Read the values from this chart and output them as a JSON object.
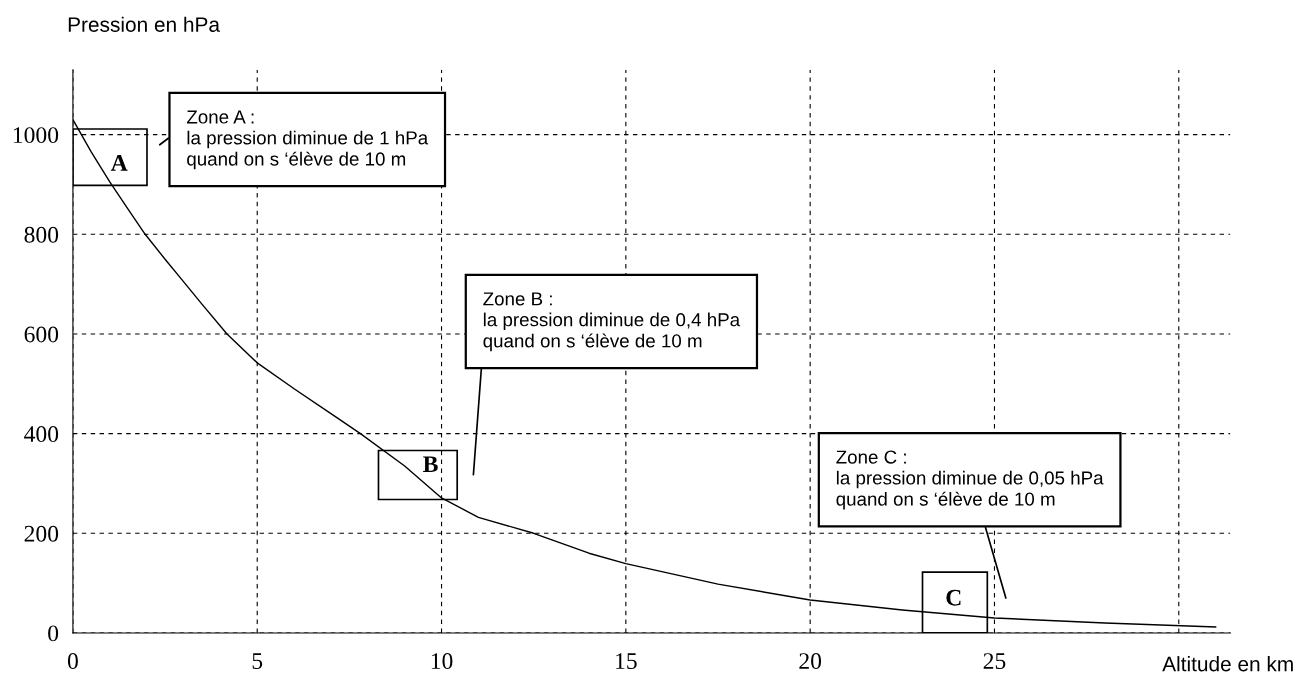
{
  "chart_data": {
    "type": "line",
    "xlabel": "Altitude en km",
    "ylabel": "Pression en hPa",
    "x": [
      0,
      0.5,
      1,
      1.5,
      1.96,
      2.5,
      3,
      3.5,
      4.18,
      5,
      6,
      7,
      7.8,
      9,
      10,
      11,
      12.5,
      14,
      15,
      17.5,
      20,
      22.5,
      25,
      28,
      31
    ],
    "series": [
      {
        "color": "#000000",
        "values": [
          1030,
          965,
          905,
          850,
          800,
          750,
          705,
          660,
          600,
          542,
          490,
          440,
          400,
          335,
          271,
          232,
          200,
          160,
          139,
          98,
          66,
          46,
          30,
          20,
          12
        ]
      }
    ],
    "xlim": [
      0,
      31.4
    ],
    "ylim": [
      0,
      1130
    ],
    "xticks": [
      0,
      5,
      10,
      15,
      20,
      25,
      {
        "value": 30,
        "label": null
      }
    ],
    "yticks": [
      0,
      200,
      400,
      600,
      800,
      1000
    ],
    "grid": true,
    "marker": "none",
    "line_style": "solid",
    "annotations": [
      "A",
      "B",
      "C",
      "Zone A :\nla pression diminue de 1 hPa\nquand on s ‘élève de 10 m",
      "Zone B :\nla pression diminue de 0,4 hPa\nquand on s ‘élève de 10 m",
      "Zone C :\nla pression diminue de 0,05 hPa\nquand on s ‘élève de 10 m"
    ]
  }
}
